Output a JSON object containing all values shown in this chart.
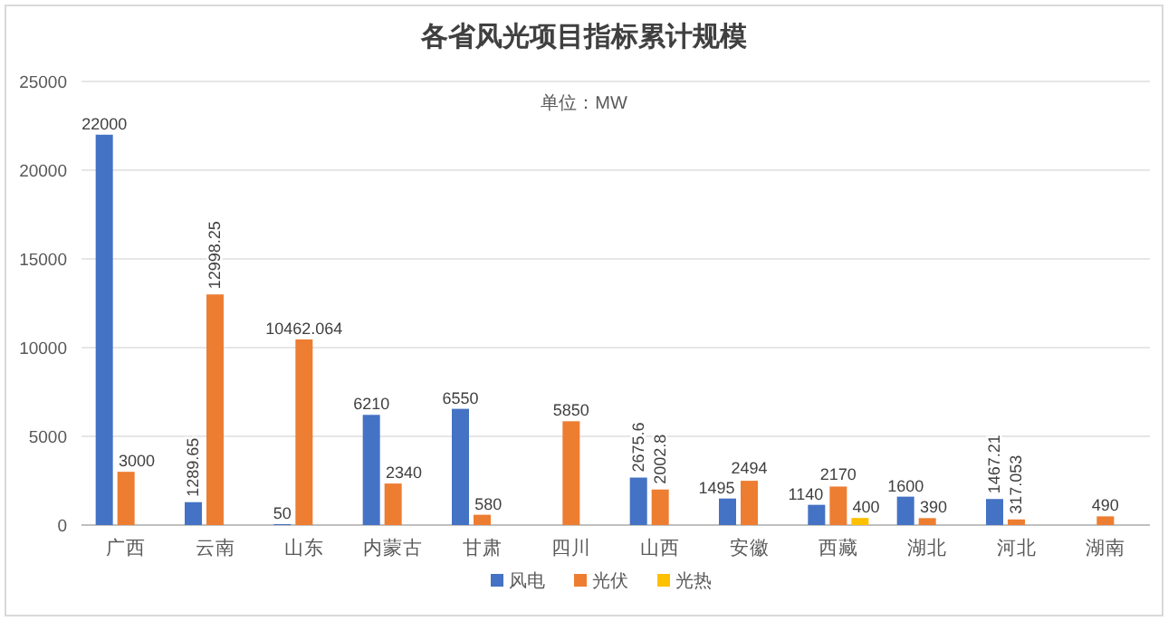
{
  "chart_data": {
    "type": "bar",
    "title": "各省风光项目指标累计规模",
    "subtitle": "单位：MW",
    "categories": [
      "广西",
      "云南",
      "山东",
      "内蒙古",
      "甘肃",
      "四川",
      "山西",
      "安徽",
      "西藏",
      "湖北",
      "河北",
      "湖南"
    ],
    "series": [
      {
        "name": "风电",
        "color": "#4472c4",
        "values": [
          22000,
          1289.65,
          50,
          6210,
          6550,
          null,
          2675.6,
          1495,
          1140,
          1600,
          1467.21,
          null
        ]
      },
      {
        "name": "光伏",
        "color": "#ed7d31",
        "values": [
          3000,
          12998.25,
          10462.064,
          2340,
          580,
          5850,
          2002.8,
          2494,
          2170,
          390,
          317.053,
          490
        ]
      },
      {
        "name": "光热",
        "color": "#ffc000",
        "values": [
          null,
          null,
          null,
          null,
          null,
          null,
          null,
          null,
          400,
          null,
          null,
          null
        ]
      }
    ],
    "ylim": [
      0,
      25000
    ],
    "yticks": [
      0,
      5000,
      10000,
      15000,
      20000,
      25000
    ],
    "grid": "y",
    "legend": "bottom",
    "data_labels": true
  }
}
